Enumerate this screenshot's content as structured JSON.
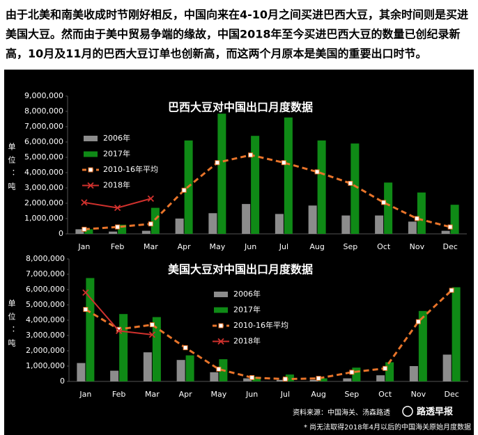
{
  "intro": [
    "由于北美和南美收成时节刚好相反，中国向来在4-10月之间买进巴西大豆，其余时间则是买进",
    "美国大豆。然而由于美中贸易争端的缘故，中国2018年至今买进巴西大豆的数量已创纪录新",
    "高，10月及11月的巴西大豆订单也创新高，而这两个月原本是美国的重要出口时节。"
  ],
  "source": "资料来源：中国海关、汤森路透",
  "brand": "路透早报",
  "note": "* 尚无法取得2018年4月以后的中国海关原始月度数据",
  "chart_data": [
    {
      "type": "bar",
      "title": "巴西大豆对中国出口月度数据",
      "ylabel": "单位：吨",
      "categories": [
        "Jan",
        "Feb",
        "Mar",
        "Apr",
        "May",
        "Jun",
        "Jul",
        "Aug",
        "Sep",
        "Oct",
        "Nov",
        "Dec"
      ],
      "ylim": [
        0,
        9000000
      ],
      "yticks": [
        0,
        {
          "value": 1000000,
          "label": "1,000,000"
        },
        {
          "value": 2000000,
          "label": "2,000,000"
        },
        {
          "value": 3000000,
          "label": "3,000,000"
        },
        {
          "value": 4000000,
          "label": "4,000,000"
        },
        {
          "value": 5000000,
          "label": "5,000,000"
        },
        {
          "value": 6000000,
          "label": "6,000,000"
        },
        {
          "value": 7000000,
          "label": "7,000,000"
        },
        {
          "value": 8000000,
          "label": "8,000,000"
        },
        {
          "value": 9000000,
          "label": "9,000,000"
        }
      ],
      "series": [
        {
          "name": "2006年",
          "type": "bar",
          "color": "#8c8c8c",
          "values": [
            300000,
            150000,
            200000,
            1000000,
            1350000,
            1950000,
            1300000,
            1850000,
            1200000,
            1200000,
            800000,
            200000
          ]
        },
        {
          "name": "2017年",
          "type": "bar",
          "color": "#0f8a16",
          "values": [
            300000,
            600000,
            1700000,
            6100000,
            7850000,
            6400000,
            7600000,
            6100000,
            5900000,
            3350000,
            2700000,
            1900000
          ]
        },
        {
          "name": "2010-16年平均",
          "type": "line",
          "color": "#e8742a",
          "dashed": true,
          "marker": "square",
          "values": [
            300000,
            450000,
            650000,
            2850000,
            4650000,
            5150000,
            4650000,
            4050000,
            3300000,
            2050000,
            1000000,
            450000
          ]
        },
        {
          "name": "2018年",
          "type": "line",
          "color": "#d0312d",
          "dashed": false,
          "marker": "x",
          "values": [
            2050000,
            1700000,
            2300000,
            null,
            null,
            null,
            null,
            null,
            null,
            null,
            null,
            null
          ]
        }
      ]
    },
    {
      "type": "bar",
      "title": "美国大豆对中国出口月度数据",
      "ylabel": "单位：吨",
      "categories": [
        "Jan",
        "Feb",
        "Mar",
        "Apr",
        "May",
        "Jun",
        "Jul",
        "Aug",
        "Sep",
        "Oct",
        "Nov",
        "Dec"
      ],
      "ylim": [
        0,
        8000000
      ],
      "yticks": [
        0,
        {
          "value": 1000000,
          "label": "1,000,000"
        },
        {
          "value": 2000000,
          "label": "2,000,000"
        },
        {
          "value": 3000000,
          "label": "3,000,000"
        },
        {
          "value": 4000000,
          "label": "4,000,000"
        },
        {
          "value": 5000000,
          "label": "5,000,000"
        },
        {
          "value": 6000000,
          "label": "6,000,000"
        },
        {
          "value": 7000000,
          "label": "7,000,000"
        },
        {
          "value": 8000000,
          "label": "8,000,000"
        }
      ],
      "series": [
        {
          "name": "2006年",
          "type": "bar",
          "color": "#8c8c8c",
          "values": [
            1200000,
            700000,
            1900000,
            1400000,
            600000,
            200000,
            100000,
            100000,
            200000,
            400000,
            1000000,
            1750000
          ]
        },
        {
          "name": "2017年",
          "type": "bar",
          "color": "#0f8a16",
          "values": [
            6750000,
            4400000,
            4200000,
            1700000,
            1450000,
            300000,
            450000,
            200000,
            900000,
            1250000,
            4600000,
            6150000
          ]
        },
        {
          "name": "2010-16年平均",
          "type": "line",
          "color": "#e8742a",
          "dashed": true,
          "marker": "square",
          "values": [
            4700000,
            3400000,
            3700000,
            2200000,
            800000,
            250000,
            150000,
            200000,
            600000,
            850000,
            3900000,
            5950000
          ]
        },
        {
          "name": "2018年",
          "type": "line",
          "color": "#d0312d",
          "dashed": false,
          "marker": "x",
          "values": [
            5800000,
            3300000,
            3050000,
            null,
            null,
            null,
            null,
            null,
            null,
            null,
            null,
            null
          ]
        }
      ]
    }
  ]
}
